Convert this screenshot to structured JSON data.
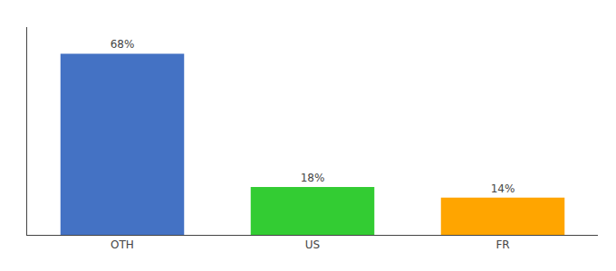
{
  "chart_data": {
    "type": "bar",
    "categories": [
      "OTH",
      "US",
      "FR"
    ],
    "values": [
      68,
      18,
      14
    ],
    "value_labels": [
      "68%",
      "18%",
      "14%"
    ],
    "data_labels": true,
    "colors": [
      "#4472C4",
      "#33CC33",
      "#FFA500"
    ],
    "ylim": [
      0,
      78
    ],
    "tick_labels": "x",
    "grid": false
  }
}
